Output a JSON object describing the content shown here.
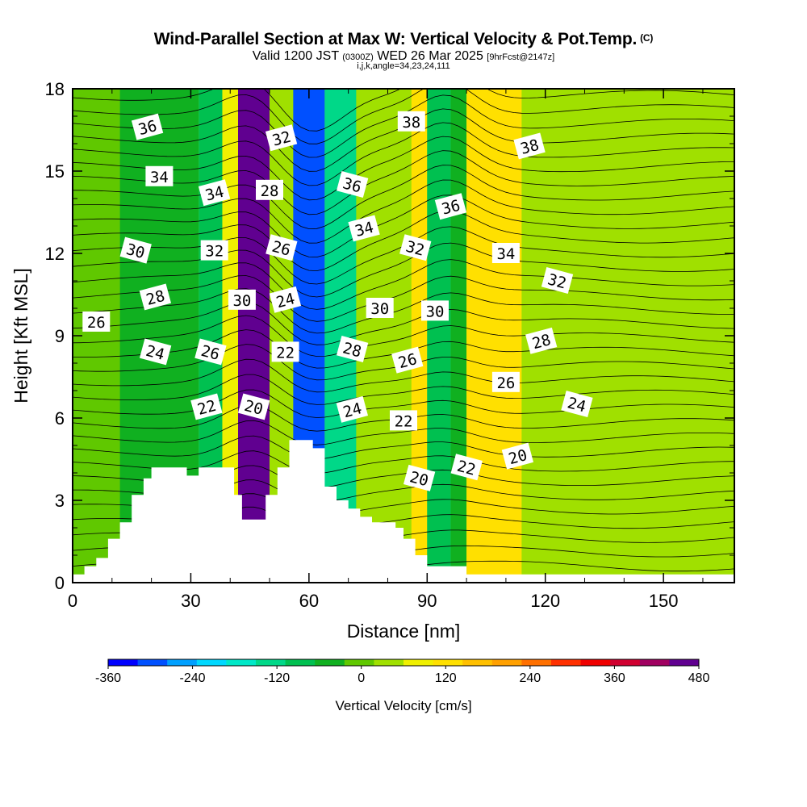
{
  "title": "Wind-Parallel Section at Max W: Vertical Velocity & Pot.Temp.",
  "title_mark": "(C)",
  "subtitle_prefix": "Valid 1200 JST",
  "subtitle_utc": "(0300Z)",
  "subtitle_date": "WED 26 Mar 2025",
  "subtitle_fcst": "[9hrFcst@2147z]",
  "subtitle2": "i,j,k,angle=34,23,24,111",
  "chart_data": {
    "type": "heatmap",
    "xlabel": "Distance [nm]",
    "ylabel": "Height [Kft MSL]",
    "xlim": [
      0,
      168
    ],
    "ylim": [
      0,
      18
    ],
    "xticks": [
      "0",
      "30",
      "60",
      "90",
      "120",
      "150"
    ],
    "yticks": [
      "0",
      "3",
      "6",
      "9",
      "12",
      "15",
      "18"
    ],
    "colorbar": {
      "title": "Vertical Velocity [cm/s]",
      "labels": [
        "-360",
        "-240",
        "-120",
        "0",
        "120",
        "240",
        "360",
        "480"
      ],
      "colors": [
        "#0000ff",
        "#0050ff",
        "#00a0ff",
        "#00d8ff",
        "#00e8c8",
        "#00d888",
        "#00c050",
        "#10b020",
        "#60c800",
        "#a0e000",
        "#f0f000",
        "#ffe000",
        "#ffc000",
        "#ffa000",
        "#ff7000",
        "#ff3000",
        "#f00000",
        "#d00030",
        "#a00060",
        "#600090"
      ]
    },
    "vertical_velocity_bands": [
      {
        "x_range": [
          0,
          12
        ],
        "w": -20
      },
      {
        "x_range": [
          12,
          32
        ],
        "w": -60
      },
      {
        "x_range": [
          32,
          38
        ],
        "w": -100
      },
      {
        "x_range": [
          38,
          42
        ],
        "w": 60
      },
      {
        "x_range": [
          42,
          50
        ],
        "w": 420
      },
      {
        "x_range": [
          50,
          56
        ],
        "w": 20
      },
      {
        "x_range": [
          56,
          64
        ],
        "w": -300
      },
      {
        "x_range": [
          64,
          72
        ],
        "w": -140
      },
      {
        "x_range": [
          72,
          86
        ],
        "w": 20
      },
      {
        "x_range": [
          86,
          90
        ],
        "w": 80
      },
      {
        "x_range": [
          90,
          96
        ],
        "w": -120
      },
      {
        "x_range": [
          96,
          100
        ],
        "w": -60
      },
      {
        "x_range": [
          100,
          114
        ],
        "w": 100
      },
      {
        "x_range": [
          114,
          168
        ],
        "w": 20
      }
    ],
    "potential_temperature_labels": [
      {
        "value": "36",
        "x": 19,
        "y": 16.6
      },
      {
        "value": "34",
        "x": 22,
        "y": 14.8
      },
      {
        "value": "30",
        "x": 16,
        "y": 12.1
      },
      {
        "value": "28",
        "x": 21,
        "y": 10.4
      },
      {
        "value": "26",
        "x": 6,
        "y": 9.5
      },
      {
        "value": "24",
        "x": 21,
        "y": 8.4
      },
      {
        "value": "34",
        "x": 36,
        "y": 14.2
      },
      {
        "value": "32",
        "x": 36,
        "y": 12.1
      },
      {
        "value": "26",
        "x": 35,
        "y": 8.4
      },
      {
        "value": "22",
        "x": 34,
        "y": 6.4
      },
      {
        "value": "30",
        "x": 43,
        "y": 10.3
      },
      {
        "value": "20",
        "x": 46,
        "y": 6.4
      },
      {
        "value": "32",
        "x": 53,
        "y": 16.2
      },
      {
        "value": "28",
        "x": 50,
        "y": 14.3
      },
      {
        "value": "26",
        "x": 53,
        "y": 12.2
      },
      {
        "value": "24",
        "x": 54,
        "y": 10.3
      },
      {
        "value": "22",
        "x": 54,
        "y": 8.4
      },
      {
        "value": "36",
        "x": 71,
        "y": 14.5
      },
      {
        "value": "34",
        "x": 74,
        "y": 12.9
      },
      {
        "value": "30",
        "x": 78,
        "y": 10.0
      },
      {
        "value": "28",
        "x": 71,
        "y": 8.5
      },
      {
        "value": "24",
        "x": 71,
        "y": 6.3
      },
      {
        "value": "38",
        "x": 86,
        "y": 16.8
      },
      {
        "value": "32",
        "x": 87,
        "y": 12.2
      },
      {
        "value": "26",
        "x": 85,
        "y": 8.1
      },
      {
        "value": "22",
        "x": 84,
        "y": 5.9
      },
      {
        "value": "20",
        "x": 88,
        "y": 3.8
      },
      {
        "value": "36",
        "x": 96,
        "y": 13.7
      },
      {
        "value": "30",
        "x": 92,
        "y": 9.9
      },
      {
        "value": "22",
        "x": 100,
        "y": 4.2
      },
      {
        "value": "38",
        "x": 116,
        "y": 15.9
      },
      {
        "value": "34",
        "x": 110,
        "y": 12.0
      },
      {
        "value": "32",
        "x": 123,
        "y": 11.0
      },
      {
        "value": "28",
        "x": 119,
        "y": 8.8
      },
      {
        "value": "26",
        "x": 110,
        "y": 7.3
      },
      {
        "value": "24",
        "x": 128,
        "y": 6.5
      },
      {
        "value": "20",
        "x": 113,
        "y": 4.6
      }
    ],
    "terrain": [
      [
        0,
        0.3
      ],
      [
        3,
        0.3
      ],
      [
        3,
        0.6
      ],
      [
        6,
        0.6
      ],
      [
        6,
        0.9
      ],
      [
        9,
        0.9
      ],
      [
        9,
        1.6
      ],
      [
        12,
        1.6
      ],
      [
        12,
        2.2
      ],
      [
        15,
        2.2
      ],
      [
        15,
        3.2
      ],
      [
        18,
        3.2
      ],
      [
        18,
        3.8
      ],
      [
        20,
        3.8
      ],
      [
        20,
        4.2
      ],
      [
        29,
        4.2
      ],
      [
        29,
        3.9
      ],
      [
        32,
        3.9
      ],
      [
        32,
        4.2
      ],
      [
        41,
        4.2
      ],
      [
        41,
        3.2
      ],
      [
        43,
        3.2
      ],
      [
        43,
        2.3
      ],
      [
        49,
        2.3
      ],
      [
        49,
        3.2
      ],
      [
        52,
        3.2
      ],
      [
        52,
        4.2
      ],
      [
        55,
        4.2
      ],
      [
        55,
        5.2
      ],
      [
        61,
        5.2
      ],
      [
        61,
        4.9
      ],
      [
        64,
        4.9
      ],
      [
        64,
        3.5
      ],
      [
        67,
        3.5
      ],
      [
        67,
        3.0
      ],
      [
        70,
        3.0
      ],
      [
        70,
        2.7
      ],
      [
        73,
        2.7
      ],
      [
        73,
        2.4
      ],
      [
        76,
        2.4
      ],
      [
        76,
        2.2
      ],
      [
        82,
        2.2
      ],
      [
        82,
        2.0
      ],
      [
        84,
        2.0
      ],
      [
        84,
        1.6
      ],
      [
        87,
        1.6
      ],
      [
        87,
        1.0
      ],
      [
        90,
        1.0
      ],
      [
        90,
        0.6
      ],
      [
        100,
        0.6
      ],
      [
        100,
        0.3
      ],
      [
        168,
        0.3
      ]
    ]
  }
}
